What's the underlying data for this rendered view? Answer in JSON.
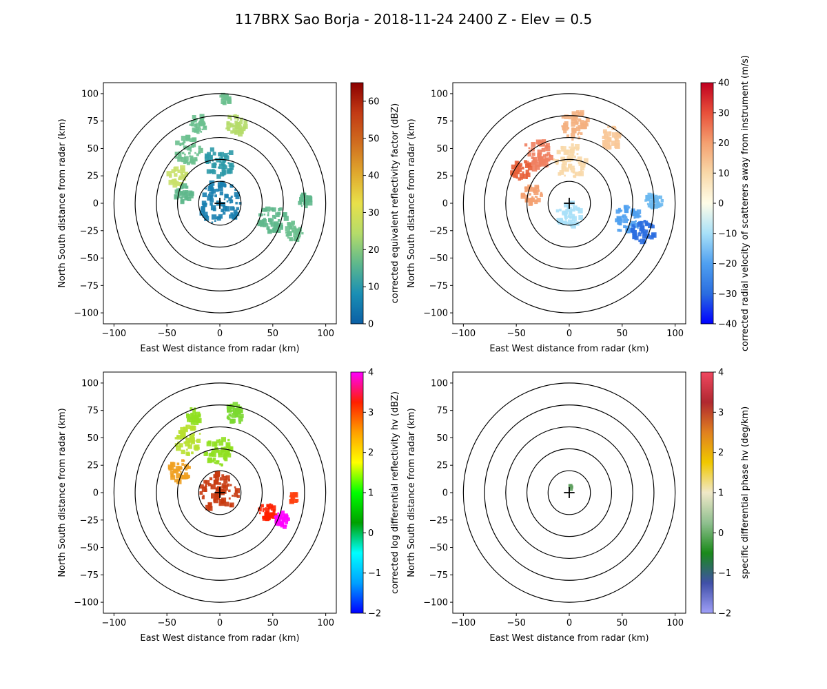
{
  "title": "117BRX Sao Borja - 2018-11-24 2400 Z -  Elev = 0.5",
  "chart_data": [
    {
      "type": "heatmap",
      "name": "reflectivity",
      "xlabel": "East West distance from radar (km)",
      "ylabel": "North South distance from radar (km)",
      "xlim": [
        -110,
        110
      ],
      "ylim": [
        -110,
        110
      ],
      "xticks": [
        -100,
        -50,
        0,
        50,
        100
      ],
      "yticks": [
        -100,
        -75,
        -50,
        -25,
        0,
        25,
        50,
        75,
        100
      ],
      "range_rings_km": [
        20,
        40,
        60,
        80,
        100
      ],
      "colorbar": {
        "label": "corrected equivalent reflectivity factor (dBZ)",
        "min": 0,
        "max": 65,
        "ticks": [
          0,
          10,
          20,
          30,
          40,
          50,
          60
        ],
        "colors": [
          "#0b5fa5",
          "#1a8fb4",
          "#5fb88c",
          "#b5dc6a",
          "#e8e04a",
          "#e0a82e",
          "#d06d1f",
          "#c23a14",
          "#8b0000"
        ]
      },
      "echoes": [
        {
          "cx": 0,
          "cy": 0,
          "r": 20,
          "color": "#1a7fb0"
        },
        {
          "cx": 0,
          "cy": 38,
          "r": 14,
          "color": "#2e9aa8"
        },
        {
          "cx": -30,
          "cy": 48,
          "r": 13,
          "color": "#6cc08f"
        },
        {
          "cx": -40,
          "cy": 25,
          "r": 9,
          "color": "#c9e06a"
        },
        {
          "cx": -34,
          "cy": 8,
          "r": 8,
          "color": "#5fb88c"
        },
        {
          "cx": -20,
          "cy": 72,
          "r": 8,
          "color": "#6cc08f"
        },
        {
          "cx": 15,
          "cy": 72,
          "r": 10,
          "color": "#b5dc6a"
        },
        {
          "cx": 5,
          "cy": 95,
          "r": 5,
          "color": "#6cc08f"
        },
        {
          "cx": 50,
          "cy": -15,
          "r": 13,
          "color": "#5fb88c"
        },
        {
          "cx": 70,
          "cy": -25,
          "r": 9,
          "color": "#6cc08f"
        },
        {
          "cx": 80,
          "cy": 2,
          "r": 6,
          "color": "#5fb88c"
        }
      ]
    },
    {
      "type": "heatmap",
      "name": "velocity",
      "xlabel": "East West distance from radar (km)",
      "ylabel": "North South distance from radar (km)",
      "xlim": [
        -110,
        110
      ],
      "ylim": [
        -110,
        110
      ],
      "xticks": [
        -100,
        -50,
        0,
        50,
        100
      ],
      "yticks": [
        -100,
        -75,
        -50,
        -25,
        0,
        25,
        50,
        75,
        100
      ],
      "range_rings_km": [
        20,
        40,
        60,
        80,
        100
      ],
      "colorbar": {
        "label": "corrected radial velocity of scatterers away from instrument (m/s)",
        "min": -40,
        "max": 40,
        "ticks": [
          -40,
          -30,
          -20,
          -10,
          0,
          10,
          20,
          30,
          40
        ],
        "colors": [
          "#0000ff",
          "#2a6de0",
          "#4fa0f0",
          "#a8e0f8",
          "#fffde8",
          "#f8d8a8",
          "#f4a070",
          "#e8503a",
          "#c00020"
        ]
      },
      "echoes": [
        {
          "cx": 0,
          "cy": 38,
          "r": 16,
          "color": "#f8d8a8"
        },
        {
          "cx": -30,
          "cy": 45,
          "r": 14,
          "color": "#f08060"
        },
        {
          "cx": -45,
          "cy": 30,
          "r": 9,
          "color": "#e8603a"
        },
        {
          "cx": -35,
          "cy": 8,
          "r": 9,
          "color": "#f4a070"
        },
        {
          "cx": 0,
          "cy": -10,
          "r": 12,
          "color": "#a8e0f8"
        },
        {
          "cx": 5,
          "cy": 72,
          "r": 14,
          "color": "#f4b080"
        },
        {
          "cx": 40,
          "cy": 60,
          "r": 10,
          "color": "#f8c898"
        },
        {
          "cx": 55,
          "cy": -15,
          "r": 13,
          "color": "#4fa0f0"
        },
        {
          "cx": 70,
          "cy": -25,
          "r": 11,
          "color": "#2a6de0"
        },
        {
          "cx": 80,
          "cy": 2,
          "r": 8,
          "color": "#6ab8f0"
        }
      ]
    },
    {
      "type": "heatmap",
      "name": "differential-reflectivity",
      "xlabel": "East West distance from radar (km)",
      "ylabel": "North South distance from radar (km)",
      "xlim": [
        -110,
        110
      ],
      "ylim": [
        -110,
        110
      ],
      "xticks": [
        -100,
        -50,
        0,
        50,
        100
      ],
      "yticks": [
        -100,
        -75,
        -50,
        -25,
        0,
        25,
        50,
        75,
        100
      ],
      "range_rings_km": [
        20,
        40,
        60,
        80,
        100
      ],
      "colorbar": {
        "label": "corrected log differential reflectivity hv (dBZ)",
        "min": -2,
        "max": 4,
        "ticks": [
          -2,
          -1,
          0,
          1,
          2,
          3,
          4
        ],
        "colors": [
          "#0000ff",
          "#00a0ff",
          "#00ffff",
          "#00a000",
          "#00ff00",
          "#ffff00",
          "#ffa000",
          "#ff2000",
          "#ff00ff"
        ]
      },
      "echoes": [
        {
          "cx": 0,
          "cy": 0,
          "r": 18,
          "color": "#c83a10"
        },
        {
          "cx": 0,
          "cy": 38,
          "r": 14,
          "color": "#90e020"
        },
        {
          "cx": -30,
          "cy": 48,
          "r": 13,
          "color": "#b8e030"
        },
        {
          "cx": -38,
          "cy": 20,
          "r": 10,
          "color": "#f0a020"
        },
        {
          "cx": -25,
          "cy": 70,
          "r": 7,
          "color": "#90e020"
        },
        {
          "cx": 15,
          "cy": 72,
          "r": 9,
          "color": "#7ad830"
        },
        {
          "cx": 45,
          "cy": -18,
          "r": 8,
          "color": "#ff2000"
        },
        {
          "cx": 58,
          "cy": -25,
          "r": 7,
          "color": "#ff00ff"
        },
        {
          "cx": 70,
          "cy": -5,
          "r": 4,
          "color": "#ff4010"
        }
      ]
    },
    {
      "type": "heatmap",
      "name": "specific-differential-phase",
      "xlabel": "East West distance from radar (km)",
      "ylabel": "North South distance from radar (km)",
      "xlim": [
        -110,
        110
      ],
      "ylim": [
        -110,
        110
      ],
      "xticks": [
        -100,
        -50,
        0,
        50,
        100
      ],
      "yticks": [
        -100,
        -75,
        -50,
        -25,
        0,
        25,
        50,
        75,
        100
      ],
      "range_rings_km": [
        20,
        40,
        60,
        80,
        100
      ],
      "colorbar": {
        "label": "specific differential phase hv (deg/km)",
        "min": -2,
        "max": 4,
        "ticks": [
          -2,
          -1,
          0,
          1,
          2,
          3,
          4
        ],
        "colors": [
          "#a0a0f8",
          "#4050a8",
          "#1a8a1a",
          "#90c090",
          "#f0e8c8",
          "#f0c800",
          "#e08020",
          "#b02830",
          "#f04860"
        ]
      },
      "echoes": [
        {
          "cx": 2,
          "cy": 5,
          "r": 2,
          "color": "#60a060"
        }
      ]
    }
  ]
}
